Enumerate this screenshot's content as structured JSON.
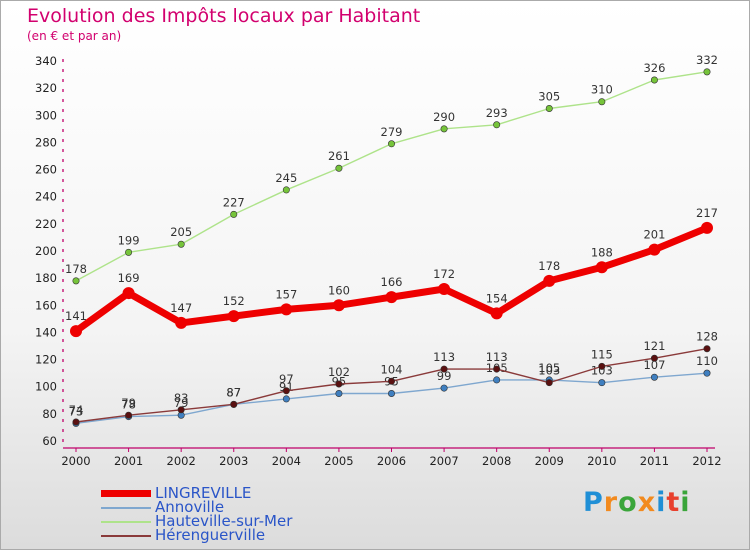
{
  "header": {
    "title": "Evolution des Impôts locaux par Habitant",
    "subtitle": "(en € et par an)"
  },
  "logo": {
    "text": "Proxiti",
    "letters": [
      "P",
      "r",
      "o",
      "x",
      "i",
      "t",
      "i"
    ],
    "colors": [
      "#1f8fd6",
      "#f28a1e",
      "#3aa53a",
      "#f28a1e",
      "#1f8fd6",
      "#e8402d",
      "#3aa53a"
    ]
  },
  "chart_data": {
    "type": "line",
    "title": "Evolution des Impôts locaux par Habitant",
    "subtitle": "(en € et par an)",
    "x": [
      "2000",
      "2001",
      "2002",
      "2003",
      "2004",
      "2005",
      "2006",
      "2007",
      "2008",
      "2009",
      "2010",
      "2011",
      "2012"
    ],
    "ylim": [
      60,
      340
    ],
    "yticks": [
      60,
      80,
      100,
      120,
      140,
      160,
      180,
      200,
      220,
      240,
      260,
      280,
      300,
      320,
      340
    ],
    "grid": false,
    "legend_position": "bottom-left",
    "series": [
      {
        "name": "LINGREVILLE",
        "color": "#ee0000",
        "marker": "#ee0000",
        "width": "thick",
        "values": [
          141,
          169,
          147,
          152,
          157,
          160,
          166,
          172,
          154,
          178,
          188,
          201,
          217
        ],
        "labels": [
          "141",
          "169",
          "147",
          "152",
          "157",
          "160",
          "166",
          "172",
          "154",
          "178",
          "188",
          "201",
          "217"
        ]
      },
      {
        "name": "Annoville",
        "color": "#7fa7cf",
        "marker": "#3f7fc0",
        "width": "thin",
        "values": [
          73,
          78,
          79,
          87,
          91,
          95,
          95,
          99,
          105,
          105,
          103,
          107,
          110
        ],
        "labels": [
          "73",
          "78",
          "79",
          "87",
          "91",
          "95",
          "95",
          "99",
          "105",
          "105",
          "103",
          "107",
          "110"
        ]
      },
      {
        "name": "Hauteville-sur-Mer",
        "color": "#aee38a",
        "marker": "#76c43a",
        "width": "thin",
        "values": [
          178,
          199,
          205,
          227,
          245,
          261,
          279,
          290,
          293,
          305,
          310,
          326,
          332
        ],
        "labels": [
          "178",
          "199",
          "205",
          "227",
          "245",
          "261",
          "279",
          "290",
          "293",
          "305",
          "310",
          "326",
          "332"
        ]
      },
      {
        "name": "Hérenguerville",
        "color": "#8a3a3a",
        "marker": "#5a1010",
        "width": "thin",
        "values": [
          74,
          79,
          83,
          87,
          97,
          102,
          104,
          113,
          113,
          103,
          115,
          121,
          128
        ],
        "labels": [
          "74",
          "79",
          "83",
          "87",
          "97",
          "102",
          "104",
          "113",
          "113",
          "103",
          "115",
          "121",
          "128"
        ]
      }
    ]
  }
}
